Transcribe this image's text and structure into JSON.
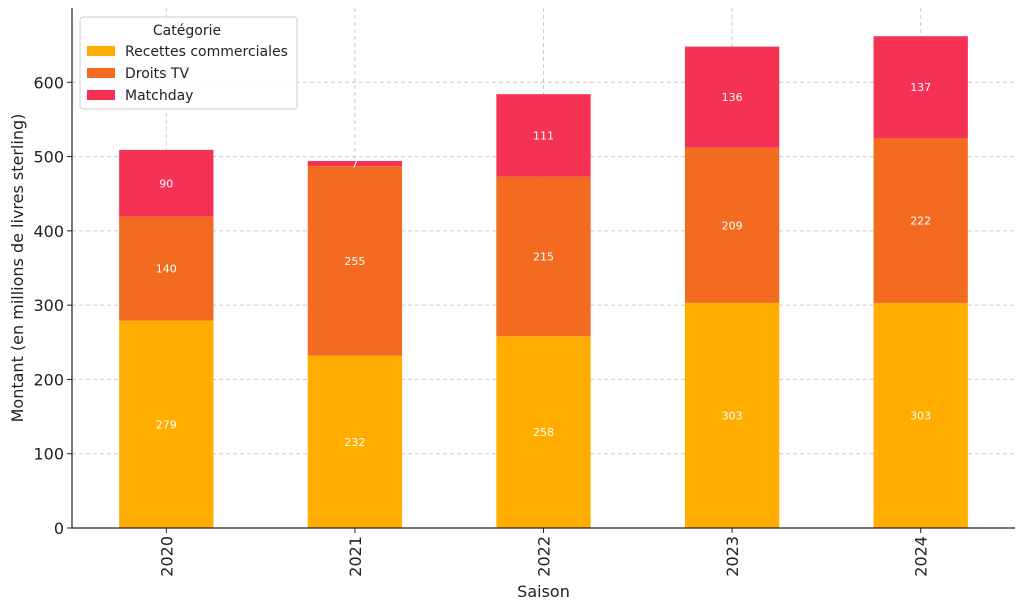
{
  "chart_data": {
    "type": "bar",
    "stacked": true,
    "categories": [
      "2020",
      "2021",
      "2022",
      "2023",
      "2024"
    ],
    "series": [
      {
        "name": "Recettes commerciales",
        "values": [
          279,
          232,
          258,
          303,
          303
        ],
        "color": "#FFAE00"
      },
      {
        "name": "Droits TV",
        "values": [
          140,
          255,
          215,
          209,
          222
        ],
        "color": "#F36B21"
      },
      {
        "name": "Matchday",
        "values": [
          90,
          7,
          111,
          136,
          137
        ],
        "color": "#F53154"
      }
    ],
    "title": "",
    "xlabel": "Saison",
    "ylabel": "Montant (en millions de livres sterling)",
    "ylim": [
      0,
      700
    ],
    "yticks": [
      0,
      100,
      200,
      300,
      400,
      500,
      600
    ],
    "grid": true,
    "legend": {
      "title": "Catégorie",
      "placement": "top-left"
    }
  }
}
